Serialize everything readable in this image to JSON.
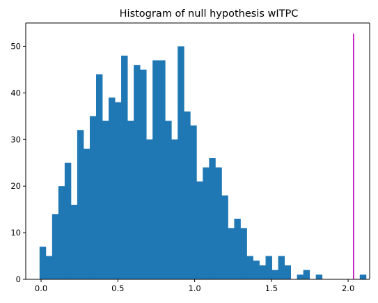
{
  "chart_data": {
    "type": "bar",
    "title": "Histogram of null hypothesis wITPC",
    "xlabel": "",
    "ylabel": "",
    "xlim": [
      -0.1,
      2.14
    ],
    "ylim": [
      0,
      55
    ],
    "x_ticks": [
      0.0,
      0.5,
      1.0,
      1.5,
      2.0
    ],
    "x_tick_labels": [
      "0.0",
      "0.5",
      "1.0",
      "1.5",
      "2.0"
    ],
    "y_ticks": [
      0,
      10,
      20,
      30,
      40,
      50
    ],
    "y_tick_labels": [
      "0",
      "10",
      "20",
      "30",
      "40",
      "50"
    ],
    "grid": false,
    "bar_color": "#1f77b4",
    "bins": {
      "start": -0.0102,
      "width": 0.0409,
      "counts": [
        7,
        5,
        14,
        20,
        25,
        16,
        32,
        28,
        35,
        44,
        34,
        39,
        38,
        48,
        34,
        46,
        45,
        30,
        47,
        47,
        34,
        30,
        50,
        36,
        33,
        21,
        24,
        26,
        24,
        18,
        11,
        13,
        11,
        5,
        4,
        3,
        5,
        2,
        5,
        3,
        0,
        1,
        2,
        0,
        1,
        0,
        0,
        0,
        0,
        0,
        0,
        1
      ]
    },
    "reference_line": {
      "x": 2.035,
      "y_top": 52.7,
      "color": "#bf00bf"
    }
  }
}
